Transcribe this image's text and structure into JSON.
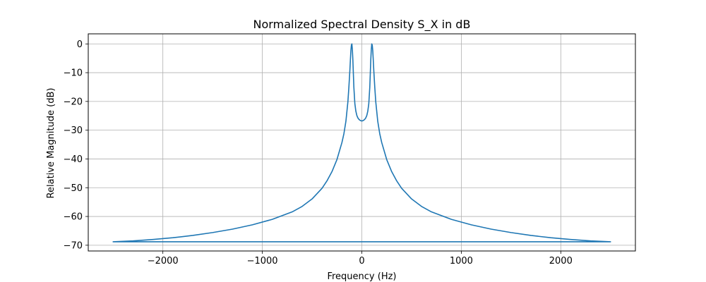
{
  "chart_data": {
    "type": "line",
    "title": "Normalized Spectral Density S_X in dB",
    "xlabel": "Frequency (Hz)",
    "ylabel": "Relative Magnitude (dB)",
    "xlim": [
      -2750,
      2750
    ],
    "ylim": [
      -72,
      3.5
    ],
    "xticks": [
      -2000,
      -1000,
      0,
      1000,
      2000
    ],
    "xtick_labels": [
      "−2000",
      "−1000",
      "0",
      "1000",
      "2000"
    ],
    "yticks": [
      0,
      -10,
      -20,
      -30,
      -40,
      -50,
      -60,
      -70
    ],
    "ytick_labels": [
      "0",
      "−10",
      "−20",
      "−30",
      "−40",
      "−50",
      "−60",
      "−70"
    ],
    "grid": true,
    "series": [
      {
        "color": "#1f77b4",
        "x": [
          -2500,
          -2300,
          -2100,
          -1900,
          -1700,
          -1500,
          -1300,
          -1100,
          -900,
          -700,
          -600,
          -500,
          -400,
          -350,
          -300,
          -250,
          -200,
          -180,
          -160,
          -140,
          -130,
          -120,
          -115,
          -110,
          -105,
          -100,
          -95,
          -90,
          -85,
          -80,
          -70,
          -60,
          -50,
          -40,
          -30,
          -20,
          -10,
          0,
          10,
          20,
          30,
          40,
          50,
          60,
          70,
          80,
          85,
          90,
          95,
          100,
          105,
          110,
          115,
          120,
          130,
          140,
          160,
          180,
          200,
          250,
          300,
          350,
          400,
          500,
          600,
          700,
          900,
          1100,
          1300,
          1500,
          1700,
          1900,
          2100,
          2300,
          2500,
          -2500
        ],
        "y": [
          -68.8,
          -68.5,
          -68.0,
          -67.4,
          -66.6,
          -65.6,
          -64.4,
          -62.9,
          -61.0,
          -58.4,
          -56.5,
          -53.9,
          -50.2,
          -47.6,
          -44.4,
          -40.2,
          -34.3,
          -31.2,
          -26.9,
          -20.1,
          -15.0,
          -9.1,
          -5.6,
          -2.4,
          -0.5,
          0.0,
          -2.0,
          -5.6,
          -10.4,
          -15.1,
          -20.8,
          -23.4,
          -24.9,
          -25.7,
          -26.2,
          -26.5,
          -26.7,
          -26.8,
          -26.7,
          -26.5,
          -26.2,
          -25.7,
          -24.9,
          -23.4,
          -20.8,
          -15.1,
          -10.4,
          -5.6,
          -2.0,
          0.0,
          -0.5,
          -2.4,
          -5.6,
          -9.1,
          -15.0,
          -20.1,
          -26.9,
          -31.2,
          -34.3,
          -40.2,
          -44.4,
          -47.6,
          -50.2,
          -53.9,
          -56.5,
          -58.4,
          -61.0,
          -62.9,
          -64.4,
          -65.6,
          -66.6,
          -67.4,
          -68.0,
          -68.5,
          -68.8,
          -68.8
        ]
      }
    ]
  }
}
